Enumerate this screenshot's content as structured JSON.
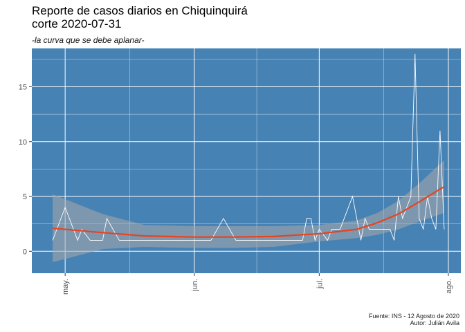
{
  "title": "Reporte de casos diarios en Chiquinquirá\ncorte 2020-07-31",
  "subtitle": "-la curva que se debe aplanar-",
  "caption_line1": "Fuente: INS - 12 Agosto de 2020",
  "caption_line2": "Autor: Julián Avila",
  "colors": {
    "panel": "#4682b4",
    "grid": "#ffffff",
    "line": "#ffffff",
    "smooth": "#e8431f",
    "band": "#a9a9a9"
  },
  "chart_data": {
    "type": "line",
    "title": "Reporte de casos diarios en Chiquinquirá corte 2020-07-31",
    "subtitle": "-la curva que se debe aplanar-",
    "xlabel": "",
    "ylabel": "",
    "ylim": [
      -2,
      18.5
    ],
    "xlim": [
      "2020-04-23",
      "2020-08-04"
    ],
    "grid": true,
    "y_ticks": [
      0,
      5,
      10,
      15
    ],
    "x_ticks": [
      {
        "date": "2020-05-01",
        "label": "may."
      },
      {
        "date": "2020-06-01",
        "label": "jun."
      },
      {
        "date": "2020-07-01",
        "label": "jul."
      },
      {
        "date": "2020-08-01",
        "label": "ago."
      }
    ],
    "series": [
      {
        "kind": "daily",
        "points": [
          [
            "2020-04-28",
            1
          ],
          [
            "2020-05-01",
            4
          ],
          [
            "2020-05-04",
            1
          ],
          [
            "2020-05-05",
            2
          ],
          [
            "2020-05-07",
            1
          ],
          [
            "2020-05-10",
            1
          ],
          [
            "2020-05-11",
            3
          ],
          [
            "2020-05-14",
            1
          ],
          [
            "2020-05-20",
            1
          ],
          [
            "2020-06-05",
            1
          ],
          [
            "2020-06-08",
            3
          ],
          [
            "2020-06-11",
            1
          ],
          [
            "2020-06-27",
            1
          ],
          [
            "2020-06-28",
            3
          ],
          [
            "2020-06-29",
            3
          ],
          [
            "2020-06-30",
            1
          ],
          [
            "2020-07-01",
            2
          ],
          [
            "2020-07-03",
            1
          ],
          [
            "2020-07-04",
            2
          ],
          [
            "2020-07-06",
            2
          ],
          [
            "2020-07-09",
            5
          ],
          [
            "2020-07-11",
            1
          ],
          [
            "2020-07-12",
            3
          ],
          [
            "2020-07-13",
            2
          ],
          [
            "2020-07-18",
            2
          ],
          [
            "2020-07-19",
            1
          ],
          [
            "2020-07-20",
            5
          ],
          [
            "2020-07-21",
            3
          ],
          [
            "2020-07-23",
            5
          ],
          [
            "2020-07-24",
            18
          ],
          [
            "2020-07-25",
            3
          ],
          [
            "2020-07-26",
            2
          ],
          [
            "2020-07-27",
            5
          ],
          [
            "2020-07-28",
            3
          ],
          [
            "2020-07-29",
            2
          ],
          [
            "2020-07-30",
            11
          ],
          [
            "2020-07-31",
            2
          ]
        ]
      },
      {
        "kind": "smooth",
        "points": [
          [
            "2020-04-28",
            2.1
          ],
          [
            "2020-05-10",
            1.7
          ],
          [
            "2020-05-20",
            1.4
          ],
          [
            "2020-06-01",
            1.3
          ],
          [
            "2020-06-10",
            1.3
          ],
          [
            "2020-06-20",
            1.35
          ],
          [
            "2020-07-01",
            1.6
          ],
          [
            "2020-07-10",
            2.0
          ],
          [
            "2020-07-15",
            2.6
          ],
          [
            "2020-07-20",
            3.4
          ],
          [
            "2020-07-25",
            4.5
          ],
          [
            "2020-07-31",
            5.9
          ]
        ],
        "lower": [
          -1.0,
          0.2,
          0.4,
          0.3,
          0.3,
          0.4,
          0.9,
          1.2,
          1.5,
          2.0,
          2.7,
          3.5
        ],
        "upper": [
          5.2,
          3.4,
          2.4,
          2.3,
          2.3,
          2.3,
          2.4,
          2.8,
          3.5,
          4.6,
          6.2,
          8.3
        ]
      }
    ]
  }
}
